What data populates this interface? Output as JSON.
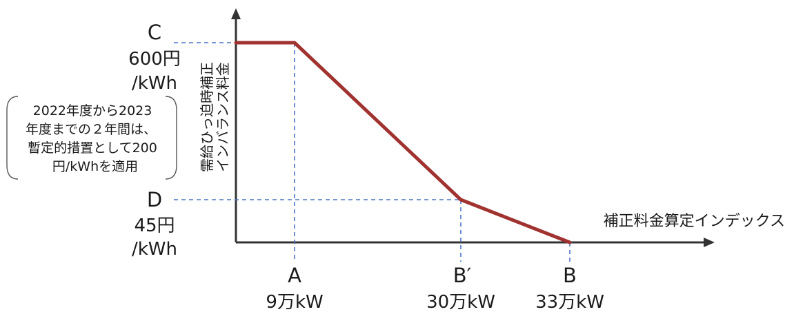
{
  "y_axis_label": [
    "需給ひっ迫時補正",
    "インバランス料金"
  ],
  "x_axis_label": "補正料金算定インデックス",
  "points": {
    "C": {
      "letter": "C",
      "value": "600円",
      "unit": "/kWh"
    },
    "D": {
      "letter": "D",
      "value": "45円",
      "unit": "/kWh"
    },
    "A": {
      "letter": "A",
      "value": "9万kW"
    },
    "B_prime": {
      "letter": "B′",
      "value": "30万kW"
    },
    "B": {
      "letter": "B",
      "value": "33万kW"
    }
  },
  "note": [
    "2022年度から2023",
    "年度までの２年間は、",
    "暫定的措置として200",
    "円/kWhを適用"
  ],
  "colors": {
    "curve": "#a0322f",
    "guide": "#4a74c4",
    "axis": "#333333"
  }
}
